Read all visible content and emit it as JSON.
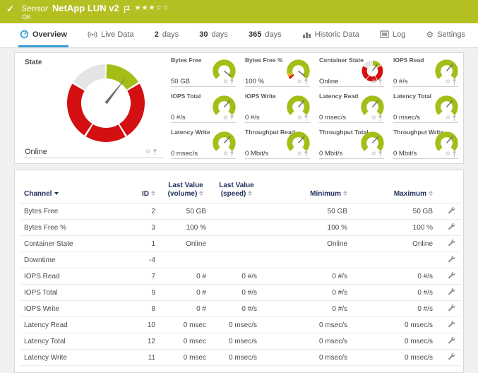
{
  "colors": {
    "header_green": "#b4c021",
    "gauge_green": "#a5bd17",
    "red": "#d40f12",
    "orange": "#f0a30a",
    "gray_segment": "#e4e4e4",
    "needle": "#6e6e6e",
    "accent_blue": "#3ba1d4",
    "table_header_navy": "#20315b"
  },
  "header": {
    "kind": "Sensor",
    "title": "NetApp LUN v2",
    "status": "OK",
    "stars": "★★★☆☆"
  },
  "tabs": [
    {
      "id": "overview",
      "icon": "gauge-icon",
      "label": "Overview",
      "active": true
    },
    {
      "id": "live-data",
      "icon": "broadcast-icon",
      "label": "Live Data"
    },
    {
      "id": "2-days",
      "num": "2",
      "label": "days"
    },
    {
      "id": "30-days",
      "num": "30",
      "label": "days"
    },
    {
      "id": "365-days",
      "num": "365",
      "label": "days"
    },
    {
      "id": "historic-data",
      "icon": "chart-icon",
      "label": "Historic Data"
    },
    {
      "id": "log",
      "icon": "log-icon",
      "label": "Log"
    },
    {
      "id": "settings",
      "icon": "settings-gear-icon",
      "label": "Settings"
    }
  ],
  "state_tile": {
    "label": "State",
    "value": "Online"
  },
  "gauges": [
    {
      "label": "Bytes Free",
      "value": "50 GB",
      "type": "full"
    },
    {
      "label": "Bytes Free %",
      "value": "100 %",
      "type": "full-warn"
    },
    {
      "label": "Container State",
      "value": "Online",
      "type": "state"
    },
    {
      "label": "IOPS Read",
      "value": "0 #/s",
      "type": "zero"
    },
    {
      "label": "IOPS Total",
      "value": "0 #/s",
      "type": "zero"
    },
    {
      "label": "IOPS Write",
      "value": "0 #/s",
      "type": "zero"
    },
    {
      "label": "Latency Read",
      "value": "0 msec/s",
      "type": "zero"
    },
    {
      "label": "Latency Total",
      "value": "0 msec/s",
      "type": "zero"
    },
    {
      "label": "Latency Write",
      "value": "0 msec/s",
      "type": "zero"
    },
    {
      "label": "Throughput Read",
      "value": "0 Mbit/s",
      "type": "zero"
    },
    {
      "label": "Throughput Total",
      "value": "0 Mbit/s",
      "type": "zero"
    },
    {
      "label": "Throughput Write",
      "value": "0 Mbit/s",
      "type": "zero"
    }
  ],
  "table": {
    "headers": [
      "Channel",
      "ID",
      "Last Value (volume)",
      "Last Value (speed)",
      "Minimum",
      "Maximum"
    ],
    "rows": [
      [
        "Bytes Free",
        "2",
        "50 GB",
        "",
        "50 GB",
        "50 GB"
      ],
      [
        "Bytes Free %",
        "3",
        "100 %",
        "",
        "100 %",
        "100 %"
      ],
      [
        "Container State",
        "1",
        "Online",
        "",
        "Online",
        "Online"
      ],
      [
        "Downtime",
        "-4",
        "",
        "",
        "",
        ""
      ],
      [
        "IOPS Read",
        "7",
        "0 #",
        "0 #/s",
        "0 #/s",
        "0 #/s"
      ],
      [
        "IOPS Total",
        "9",
        "0 #",
        "0 #/s",
        "0 #/s",
        "0 #/s"
      ],
      [
        "IOPS Write",
        "8",
        "0 #",
        "0 #/s",
        "0 #/s",
        "0 #/s"
      ],
      [
        "Latency Read",
        "10",
        "0 msec",
        "0 msec/s",
        "0 msec/s",
        "0 msec/s"
      ],
      [
        "Latency Total",
        "12",
        "0 msec",
        "0 msec/s",
        "0 msec/s",
        "0 msec/s"
      ],
      [
        "Latency Write",
        "11",
        "0 msec",
        "0 msec/s",
        "0 msec/s",
        "0 msec/s"
      ]
    ]
  }
}
